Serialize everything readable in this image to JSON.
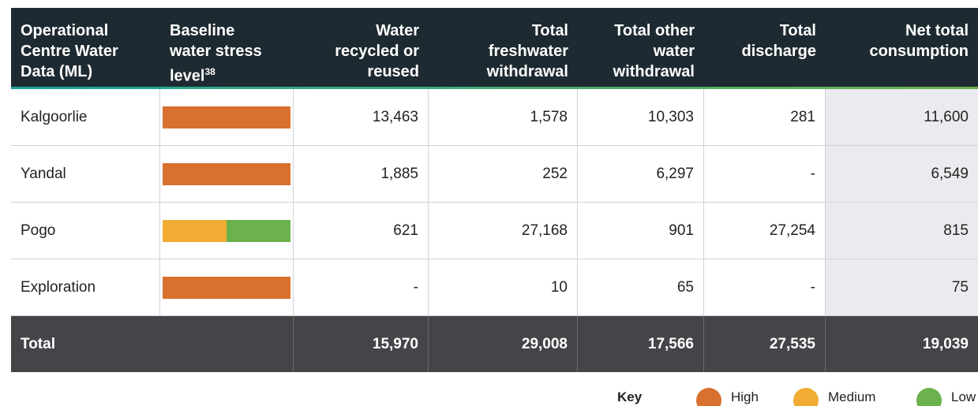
{
  "table": {
    "columns": [
      {
        "lines": [
          "Operational",
          "Centre Water",
          "Data (ML)"
        ]
      },
      {
        "lines": [
          "Baseline",
          "water stress",
          "level"
        ],
        "sup": "38"
      },
      {
        "lines": [
          "Water",
          "recycled or",
          "reused"
        ]
      },
      {
        "lines": [
          "Total",
          "freshwater",
          "withdrawal"
        ]
      },
      {
        "lines": [
          "Total other",
          "water",
          "withdrawal"
        ]
      },
      {
        "lines": [
          "Total",
          "discharge"
        ]
      },
      {
        "lines": [
          "Net total",
          "consumption"
        ]
      }
    ],
    "rows": [
      {
        "name": "Kalgoorlie",
        "stress": [
          "High"
        ],
        "values": [
          "13,463",
          "1,578",
          "10,303",
          "281",
          "11,600"
        ]
      },
      {
        "name": "Yandal",
        "stress": [
          "High"
        ],
        "values": [
          "1,885",
          "252",
          "6,297",
          "-",
          "6,549"
        ]
      },
      {
        "name": "Pogo",
        "stress": [
          "Medium",
          "Low"
        ],
        "values": [
          "621",
          "27,168",
          "901",
          "27,254",
          "815"
        ]
      },
      {
        "name": "Exploration",
        "stress": [
          "High"
        ],
        "values": [
          "-",
          "10",
          "65",
          "-",
          "75"
        ]
      }
    ],
    "total": {
      "label": "Total",
      "values": [
        "15,970",
        "29,008",
        "17,566",
        "27,535",
        "19,039"
      ]
    }
  },
  "key": {
    "title": "Key",
    "items": [
      {
        "label": "High",
        "color": "#d8702f"
      },
      {
        "label": "Medium",
        "color": "#f0ac33"
      },
      {
        "label": "Low",
        "color": "#6bb14c"
      }
    ]
  }
}
